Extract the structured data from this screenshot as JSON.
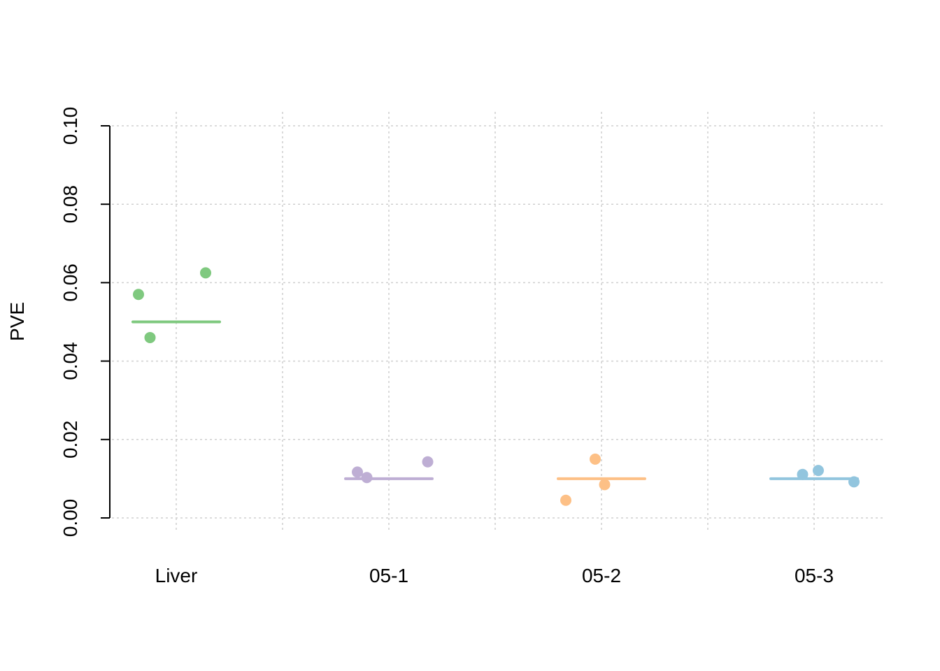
{
  "chart_data": {
    "type": "scatter",
    "title": "",
    "xlabel": "",
    "ylabel": "PVE",
    "categories": [
      "Liver",
      "05-1",
      "05-2",
      "05-3"
    ],
    "ylim": [
      0,
      0.1
    ],
    "yticks": [
      "0.00",
      "0.02",
      "0.04",
      "0.06",
      "0.08",
      "0.10"
    ],
    "grid": true,
    "legend": "none",
    "groups": [
      {
        "category": "Liver",
        "color": "#7fc97f",
        "mean": 0.05,
        "points": [
          {
            "x_offset": -0.36,
            "y": 0.057
          },
          {
            "x_offset": -0.25,
            "y": 0.046
          },
          {
            "x_offset": 0.28,
            "y": 0.0625
          }
        ]
      },
      {
        "category": "05-1",
        "color": "#beaed4",
        "mean": 0.01,
        "points": [
          {
            "x_offset": -0.3,
            "y": 0.0117
          },
          {
            "x_offset": -0.21,
            "y": 0.0103
          },
          {
            "x_offset": 0.37,
            "y": 0.0143
          }
        ]
      },
      {
        "category": "05-2",
        "color": "#fdc086",
        "mean": 0.01,
        "points": [
          {
            "x_offset": -0.34,
            "y": 0.0045
          },
          {
            "x_offset": -0.06,
            "y": 0.015
          },
          {
            "x_offset": 0.03,
            "y": 0.0085
          }
        ]
      },
      {
        "category": "05-3",
        "color": "#92c5de",
        "mean": 0.01,
        "points": [
          {
            "x_offset": -0.11,
            "y": 0.0111
          },
          {
            "x_offset": 0.04,
            "y": 0.0121
          },
          {
            "x_offset": 0.38,
            "y": 0.0092
          }
        ]
      }
    ]
  }
}
